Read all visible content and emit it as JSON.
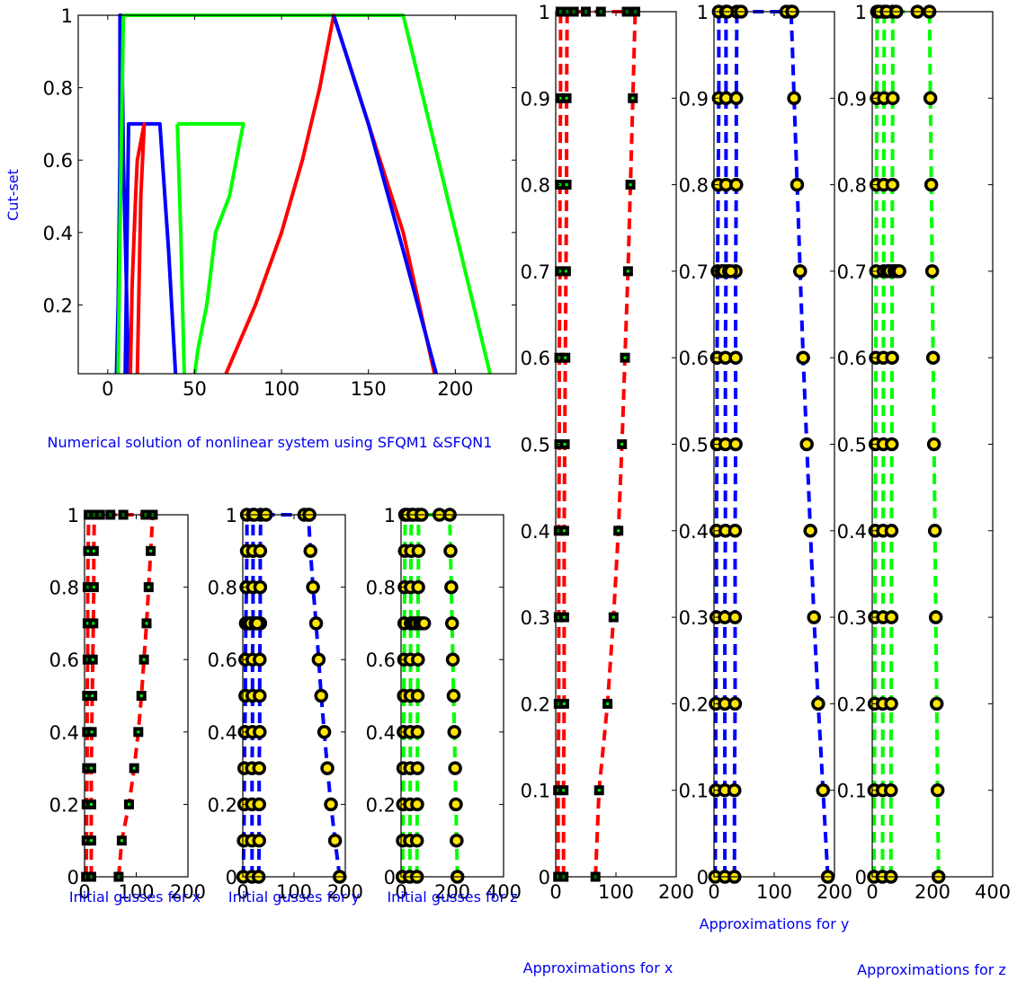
{
  "colors": {
    "x": "#ff0000",
    "y": "#0000ff",
    "z": "#00ff00",
    "marker_fill": "#ffe600",
    "marker_edge": "#000000",
    "square_center": "#00ff00"
  },
  "caption": "Numerical solution of nonlinear system using SFQM1 &SFQN1",
  "chart_data": [
    {
      "id": "membership",
      "type": "line",
      "ylabel": "Cut-set",
      "xlim": [
        -17,
        235
      ],
      "ylim": [
        0.01,
        1
      ],
      "xticks": [
        0,
        50,
        100,
        150,
        200
      ],
      "yticks": [
        0.2,
        0.4,
        0.6,
        0.8,
        1
      ],
      "series": [
        {
          "color": "blue",
          "points": [
            [
              5,
              0.01
            ],
            [
              6,
              0.2
            ],
            [
              7,
              0.6
            ],
            [
              7,
              1
            ],
            [
              8,
              1
            ],
            [
              9,
              0.6
            ],
            [
              11,
              0.2
            ],
            [
              12,
              0.01
            ]
          ]
        },
        {
          "color": "green",
          "points": [
            [
              6,
              0.01
            ],
            [
              7,
              0.4
            ],
            [
              9,
              1
            ],
            [
              170,
              1
            ],
            [
              220,
              0.01
            ]
          ]
        },
        {
          "color": "red",
          "points": [
            [
              68,
              0.01
            ],
            [
              85,
              0.2
            ],
            [
              100,
              0.4
            ],
            [
              112,
              0.6
            ],
            [
              122,
              0.8
            ],
            [
              130,
              1
            ],
            [
              150,
              0.7
            ],
            [
              170,
              0.4
            ],
            [
              188,
              0.01
            ]
          ]
        },
        {
          "color": "blue",
          "points": [
            [
              130,
              1
            ],
            [
              150,
              0.7
            ],
            [
              170,
              0.35
            ],
            [
              189,
              0.01
            ]
          ]
        },
        {
          "color": "blue",
          "points": [
            [
              10,
              0.01
            ],
            [
              11,
              0.35
            ],
            [
              12,
              0.7
            ],
            [
              30,
              0.7
            ],
            [
              35,
              0.35
            ],
            [
              39,
              0.01
            ]
          ]
        },
        {
          "color": "red",
          "points": [
            [
              13,
              0.01
            ],
            [
              14,
              0.25
            ],
            [
              16,
              0.5
            ],
            [
              17,
              0.6
            ],
            [
              21,
              0.7
            ],
            [
              19,
              0.5
            ],
            [
              18,
              0.25
            ],
            [
              17,
              0.01
            ]
          ]
        },
        {
          "color": "green",
          "points": [
            [
              40,
              0.7
            ],
            [
              78,
              0.7
            ],
            [
              70,
              0.5
            ],
            [
              62,
              0.4
            ],
            [
              57,
              0.2
            ],
            [
              52,
              0.08
            ],
            [
              50,
              0.01
            ]
          ]
        },
        {
          "color": "green",
          "points": [
            [
              40,
              0.7
            ],
            [
              42,
              0.4
            ],
            [
              43,
              0.2
            ],
            [
              44,
              0.01
            ]
          ]
        }
      ]
    },
    {
      "id": "init-x",
      "type": "scatter",
      "xlabel": "Initial gusses for x",
      "xlim": [
        0,
        200
      ],
      "ylim": [
        0,
        1
      ],
      "xticks": [
        0,
        100,
        200
      ],
      "yticks": [
        0,
        0.2,
        0.4,
        0.6,
        0.8,
        1
      ],
      "marker": "square",
      "color": "red",
      "series": [
        {
          "x": [
            3,
            4,
            4,
            5,
            5,
            5,
            6,
            6,
            6,
            7,
            8
          ],
          "y": [
            0,
            0.1,
            0.2,
            0.3,
            0.4,
            0.5,
            0.6,
            0.7,
            0.8,
            0.9,
            1
          ]
        },
        {
          "x": [
            13,
            13,
            13,
            13,
            14,
            15,
            16,
            17,
            18,
            18,
            19
          ],
          "y": [
            0,
            0.1,
            0.2,
            0.3,
            0.4,
            0.5,
            0.6,
            0.7,
            0.8,
            0.9,
            1
          ]
        },
        {
          "x": [
            66,
            72,
            86,
            96,
            104,
            110,
            115,
            120,
            124,
            128,
            132
          ],
          "y": [
            0,
            0.1,
            0.2,
            0.3,
            0.4,
            0.5,
            0.6,
            0.7,
            0.8,
            0.9,
            1
          ]
        }
      ],
      "extra_points": [
        [
          30,
          1
        ],
        [
          50,
          1
        ],
        [
          75,
          1
        ],
        [
          118,
          1
        ]
      ]
    },
    {
      "id": "init-y",
      "type": "scatter",
      "xlabel": "Initial gusses for y",
      "xlim": [
        0,
        200
      ],
      "ylim": [
        0,
        1
      ],
      "xticks": [
        0,
        100,
        200
      ],
      "yticks": [
        0,
        0.2,
        0.4,
        0.6,
        0.8,
        1
      ],
      "marker": "circle",
      "color": "blue",
      "series": [
        {
          "x": [
            1,
            2,
            3,
            3,
            4,
            5,
            5,
            6,
            7,
            8,
            8
          ],
          "y": [
            0,
            0.1,
            0.2,
            0.3,
            0.4,
            0.5,
            0.6,
            0.7,
            0.8,
            0.9,
            1
          ]
        },
        {
          "x": [
            18,
            18,
            18,
            18,
            19,
            19,
            19,
            20,
            20,
            20,
            20
          ],
          "y": [
            0,
            0.1,
            0.2,
            0.3,
            0.4,
            0.5,
            0.6,
            0.7,
            0.8,
            0.9,
            1
          ]
        },
        {
          "x": [
            31,
            32,
            32,
            32,
            33,
            33,
            33,
            34,
            34,
            34,
            35
          ],
          "y": [
            0,
            0.1,
            0.2,
            0.3,
            0.4,
            0.5,
            0.6,
            0.7,
            0.8,
            0.9,
            1
          ]
        },
        {
          "x": [
            189,
            180,
            172,
            165,
            159,
            153,
            148,
            143,
            137,
            132,
            128
          ],
          "y": [
            0,
            0.1,
            0.2,
            0.3,
            0.4,
            0.5,
            0.6,
            0.7,
            0.8,
            0.9,
            1
          ]
        }
      ],
      "extra_points": [
        [
          22,
          1
        ],
        [
          45,
          1
        ],
        [
          120,
          1
        ],
        [
          130,
          1
        ],
        [
          12,
          0.7
        ],
        [
          15,
          0.7
        ],
        [
          25,
          0.7
        ],
        [
          28,
          0.7
        ]
      ]
    },
    {
      "id": "init-z",
      "type": "scatter",
      "xlabel": "Initial gusses for z",
      "xlim": [
        0,
        400
      ],
      "ylim": [
        0,
        1
      ],
      "xticks": [
        0,
        200,
        400
      ],
      "yticks": [
        0,
        0.2,
        0.4,
        0.6,
        0.8,
        1
      ],
      "marker": "circle",
      "color": "green",
      "series": [
        {
          "x": [
            6,
            7,
            8,
            9,
            10,
            11,
            12,
            13,
            14,
            15,
            16
          ],
          "y": [
            0,
            0.1,
            0.2,
            0.3,
            0.4,
            0.5,
            0.6,
            0.7,
            0.8,
            0.9,
            1
          ]
        },
        {
          "x": [
            34,
            35,
            35,
            36,
            36,
            37,
            37,
            38,
            38,
            39,
            40
          ],
          "y": [
            0,
            0.1,
            0.2,
            0.3,
            0.4,
            0.5,
            0.6,
            0.7,
            0.8,
            0.9,
            1
          ]
        },
        {
          "x": [
            62,
            62,
            63,
            64,
            64,
            65,
            66,
            66,
            67,
            68,
            68
          ],
          "y": [
            0,
            0.1,
            0.2,
            0.3,
            0.4,
            0.5,
            0.6,
            0.7,
            0.8,
            0.9,
            1
          ]
        },
        {
          "x": [
            220,
            217,
            214,
            211,
            208,
            205,
            202,
            199,
            196,
            193,
            190
          ],
          "y": [
            0,
            0.1,
            0.2,
            0.3,
            0.4,
            0.5,
            0.6,
            0.7,
            0.8,
            0.9,
            1
          ]
        }
      ],
      "extra_points": [
        [
          24,
          1
        ],
        [
          48,
          1
        ],
        [
          80,
          1
        ],
        [
          150,
          1
        ],
        [
          50,
          0.7
        ],
        [
          58,
          0.7
        ],
        [
          74,
          0.7
        ],
        [
          82,
          0.7
        ],
        [
          90,
          0.7
        ]
      ]
    },
    {
      "id": "approx-x",
      "type": "scatter",
      "xlabel": "Approximations for x",
      "xlim": [
        0,
        200
      ],
      "ylim": [
        0,
        1
      ],
      "xticks": [
        0,
        100,
        200
      ],
      "yticks": [
        0,
        0.1,
        0.2,
        0.3,
        0.4,
        0.5,
        0.6,
        0.7,
        0.8,
        0.9,
        1
      ],
      "marker": "square",
      "color": "red",
      "series": [
        {
          "x": [
            4,
            4,
            5,
            5,
            5,
            6,
            6,
            7,
            7,
            8,
            8
          ],
          "y": [
            0,
            0.1,
            0.2,
            0.3,
            0.4,
            0.5,
            0.6,
            0.7,
            0.8,
            0.9,
            1
          ]
        },
        {
          "x": [
            13,
            13,
            14,
            14,
            14,
            15,
            16,
            17,
            18,
            18,
            19
          ],
          "y": [
            0,
            0.1,
            0.2,
            0.3,
            0.4,
            0.5,
            0.6,
            0.7,
            0.8,
            0.9,
            1
          ]
        },
        {
          "x": [
            66,
            72,
            86,
            96,
            104,
            110,
            115,
            120,
            124,
            128,
            132
          ],
          "y": [
            0,
            0.1,
            0.2,
            0.3,
            0.4,
            0.5,
            0.6,
            0.7,
            0.8,
            0.9,
            1
          ]
        }
      ],
      "extra_points": [
        [
          30,
          1
        ],
        [
          50,
          1
        ],
        [
          75,
          1
        ],
        [
          118,
          1
        ]
      ]
    },
    {
      "id": "approx-y",
      "type": "scatter",
      "xlabel": "Approximations for y",
      "xlim": [
        0,
        200
      ],
      "ylim": [
        0,
        1
      ],
      "xticks": [
        0,
        100,
        200
      ],
      "yticks": [
        0,
        0.1,
        0.2,
        0.3,
        0.4,
        0.5,
        0.6,
        0.7,
        0.8,
        0.9,
        1
      ],
      "marker": "circle",
      "color": "blue",
      "series": [
        {
          "x": [
            2,
            3,
            3,
            4,
            4,
            5,
            5,
            6,
            7,
            8,
            8
          ],
          "y": [
            0,
            0.1,
            0.2,
            0.3,
            0.4,
            0.5,
            0.6,
            0.7,
            0.8,
            0.9,
            1
          ]
        },
        {
          "x": [
            18,
            18,
            18,
            18,
            19,
            19,
            19,
            20,
            20,
            20,
            20
          ],
          "y": [
            0,
            0.1,
            0.2,
            0.3,
            0.4,
            0.5,
            0.6,
            0.7,
            0.8,
            0.9,
            1
          ]
        },
        {
          "x": [
            34,
            34,
            35,
            35,
            35,
            36,
            36,
            36,
            37,
            37,
            38
          ],
          "y": [
            0,
            0.1,
            0.2,
            0.3,
            0.4,
            0.5,
            0.6,
            0.7,
            0.8,
            0.9,
            1
          ]
        },
        {
          "x": [
            189,
            181,
            173,
            166,
            160,
            154,
            148,
            143,
            138,
            133,
            128
          ],
          "y": [
            0,
            0.1,
            0.2,
            0.3,
            0.4,
            0.5,
            0.6,
            0.7,
            0.8,
            0.9,
            1
          ]
        }
      ],
      "extra_points": [
        [
          22,
          1
        ],
        [
          45,
          1
        ],
        [
          120,
          1
        ],
        [
          130,
          1
        ],
        [
          13,
          0.7
        ],
        [
          16,
          0.7
        ],
        [
          25,
          0.7
        ],
        [
          28,
          0.7
        ]
      ]
    },
    {
      "id": "approx-z",
      "type": "scatter",
      "xlabel": "Approximations for z",
      "xlim": [
        0,
        400
      ],
      "ylim": [
        0,
        1
      ],
      "xticks": [
        0,
        200,
        400
      ],
      "yticks": [
        0,
        0.1,
        0.2,
        0.3,
        0.4,
        0.5,
        0.6,
        0.7,
        0.8,
        0.9,
        1
      ],
      "marker": "circle",
      "color": "green",
      "series": [
        {
          "x": [
            6,
            7,
            8,
            9,
            10,
            11,
            12,
            13,
            14,
            15,
            16
          ],
          "y": [
            0,
            0.1,
            0.2,
            0.3,
            0.4,
            0.5,
            0.6,
            0.7,
            0.8,
            0.9,
            1
          ]
        },
        {
          "x": [
            34,
            35,
            35,
            36,
            36,
            37,
            37,
            38,
            38,
            39,
            40
          ],
          "y": [
            0,
            0.1,
            0.2,
            0.3,
            0.4,
            0.5,
            0.6,
            0.7,
            0.8,
            0.9,
            1
          ]
        },
        {
          "x": [
            62,
            62,
            63,
            64,
            64,
            65,
            66,
            66,
            67,
            68,
            68
          ],
          "y": [
            0,
            0.1,
            0.2,
            0.3,
            0.4,
            0.5,
            0.6,
            0.7,
            0.8,
            0.9,
            1
          ]
        },
        {
          "x": [
            220,
            217,
            214,
            211,
            208,
            205,
            202,
            199,
            196,
            193,
            190
          ],
          "y": [
            0,
            0.1,
            0.2,
            0.3,
            0.4,
            0.5,
            0.6,
            0.7,
            0.8,
            0.9,
            1
          ]
        }
      ],
      "extra_points": [
        [
          24,
          1
        ],
        [
          48,
          1
        ],
        [
          80,
          1
        ],
        [
          150,
          1
        ],
        [
          50,
          0.7
        ],
        [
          58,
          0.7
        ],
        [
          74,
          0.7
        ],
        [
          82,
          0.7
        ],
        [
          90,
          0.7
        ]
      ]
    }
  ]
}
